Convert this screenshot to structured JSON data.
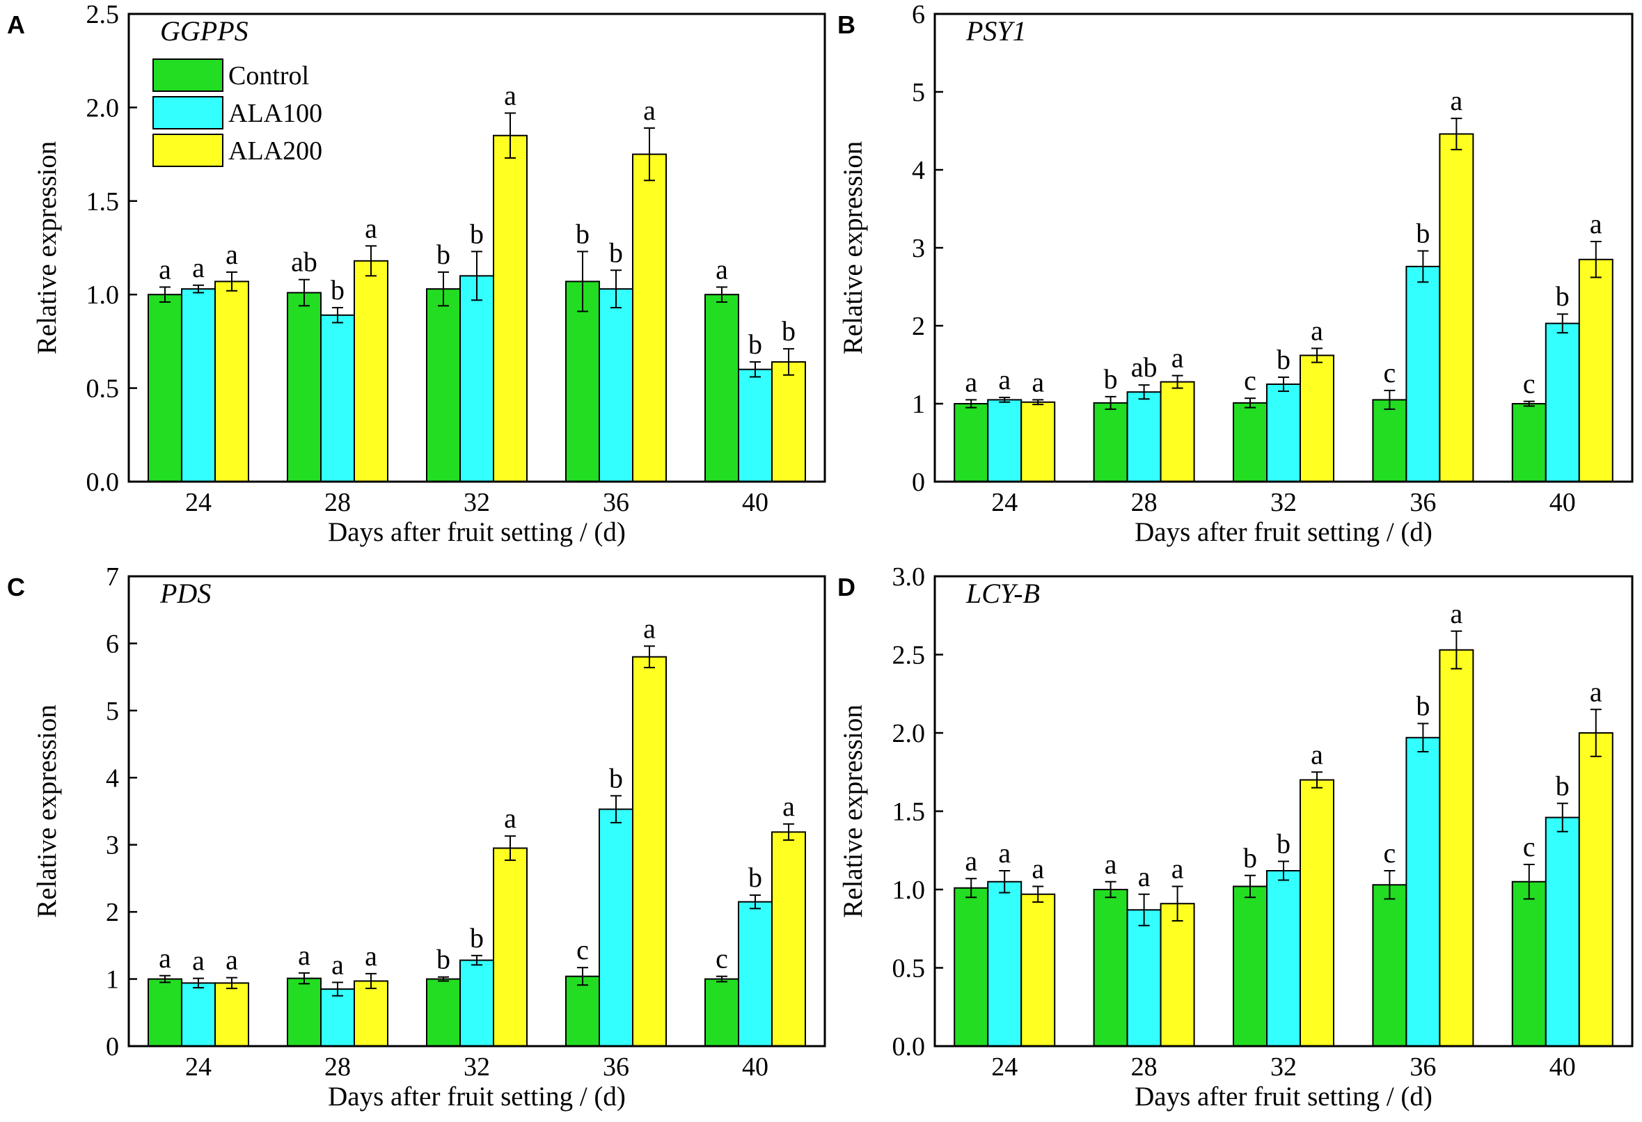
{
  "colors": {
    "control": "#22dd22",
    "ala100": "#33ffff",
    "ala200": "#ffff22",
    "frame": "#000000"
  },
  "legend": [
    "Control",
    "ALA100",
    "ALA200"
  ],
  "chart_data": [
    {
      "panel": "A",
      "type": "bar",
      "title": "GGPPS",
      "xlabel": "Days after fruit setting / (d)",
      "ylabel": "Relative expression",
      "categories": [
        "24",
        "28",
        "32",
        "36",
        "40"
      ],
      "ylim": [
        0,
        2.5
      ],
      "yticks": [
        "0.0",
        "0.5",
        "1.0",
        "1.5",
        "2.0",
        "2.5"
      ],
      "legend_shown": true,
      "series": [
        {
          "name": "Control",
          "values": [
            1.0,
            1.01,
            1.03,
            1.07,
            1.0
          ],
          "errors": [
            0.04,
            0.07,
            0.09,
            0.16,
            0.04
          ],
          "labels": [
            "a",
            "ab",
            "b",
            "b",
            "a"
          ]
        },
        {
          "name": "ALA100",
          "values": [
            1.03,
            0.89,
            1.1,
            1.03,
            0.6
          ],
          "errors": [
            0.02,
            0.04,
            0.13,
            0.1,
            0.04
          ],
          "labels": [
            "a",
            "b",
            "b",
            "b",
            "b"
          ]
        },
        {
          "name": "ALA200",
          "values": [
            1.07,
            1.18,
            1.85,
            1.75,
            0.64
          ],
          "errors": [
            0.05,
            0.08,
            0.12,
            0.14,
            0.07
          ],
          "labels": [
            "a",
            "a",
            "a",
            "a",
            "b"
          ]
        }
      ]
    },
    {
      "panel": "B",
      "type": "bar",
      "title": "PSY1",
      "xlabel": "Days after fruit setting / (d)",
      "ylabel": "Relative expression",
      "categories": [
        "24",
        "28",
        "32",
        "36",
        "40"
      ],
      "ylim": [
        0,
        6
      ],
      "yticks": [
        "0",
        "1",
        "2",
        "3",
        "4",
        "5",
        "6"
      ],
      "legend_shown": false,
      "series": [
        {
          "name": "Control",
          "values": [
            1.0,
            1.01,
            1.01,
            1.05,
            1.0
          ],
          "errors": [
            0.05,
            0.08,
            0.06,
            0.12,
            0.03
          ],
          "labels": [
            "a",
            "b",
            "c",
            "c",
            "c"
          ]
        },
        {
          "name": "ALA100",
          "values": [
            1.05,
            1.15,
            1.25,
            2.76,
            2.03
          ],
          "errors": [
            0.03,
            0.09,
            0.09,
            0.2,
            0.12
          ],
          "labels": [
            "a",
            "ab",
            "b",
            "b",
            "b"
          ]
        },
        {
          "name": "ALA200",
          "values": [
            1.02,
            1.28,
            1.62,
            4.46,
            2.85
          ],
          "errors": [
            0.03,
            0.08,
            0.09,
            0.2,
            0.23
          ],
          "labels": [
            "a",
            "a",
            "a",
            "a",
            "a"
          ]
        }
      ]
    },
    {
      "panel": "C",
      "type": "bar",
      "title": "PDS",
      "xlabel": "Days after fruit setting / (d)",
      "ylabel": "Relative expression",
      "categories": [
        "24",
        "28",
        "32",
        "36",
        "40"
      ],
      "ylim": [
        0,
        7
      ],
      "yticks": [
        "0",
        "1",
        "2",
        "3",
        "4",
        "5",
        "6",
        "7"
      ],
      "legend_shown": false,
      "series": [
        {
          "name": "Control",
          "values": [
            1.0,
            1.01,
            1.0,
            1.04,
            1.0
          ],
          "errors": [
            0.05,
            0.08,
            0.03,
            0.13,
            0.04
          ],
          "labels": [
            "a",
            "a",
            "b",
            "c",
            "c"
          ]
        },
        {
          "name": "ALA100",
          "values": [
            0.94,
            0.85,
            1.28,
            3.53,
            2.15
          ],
          "errors": [
            0.07,
            0.1,
            0.07,
            0.2,
            0.1
          ],
          "labels": [
            "a",
            "a",
            "b",
            "b",
            "b"
          ]
        },
        {
          "name": "ALA200",
          "values": [
            0.94,
            0.97,
            2.95,
            5.8,
            3.19
          ],
          "errors": [
            0.08,
            0.11,
            0.18,
            0.16,
            0.12
          ],
          "labels": [
            "a",
            "a",
            "a",
            "a",
            "a"
          ]
        }
      ]
    },
    {
      "panel": "D",
      "type": "bar",
      "title": "LCY-B",
      "xlabel": "Days after fruit setting / (d)",
      "ylabel": "Relative expression",
      "categories": [
        "24",
        "28",
        "32",
        "36",
        "40"
      ],
      "ylim": [
        0,
        3.0
      ],
      "yticks": [
        "0.0",
        "0.5",
        "1.0",
        "1.5",
        "2.0",
        "2.5",
        "3.0"
      ],
      "legend_shown": false,
      "series": [
        {
          "name": "Control",
          "values": [
            1.01,
            1.0,
            1.02,
            1.03,
            1.05
          ],
          "errors": [
            0.06,
            0.05,
            0.07,
            0.09,
            0.11
          ],
          "labels": [
            "a",
            "a",
            "b",
            "c",
            "c"
          ]
        },
        {
          "name": "ALA100",
          "values": [
            1.05,
            0.87,
            1.12,
            1.97,
            1.46
          ],
          "errors": [
            0.07,
            0.1,
            0.06,
            0.09,
            0.09
          ],
          "labels": [
            "a",
            "a",
            "b",
            "b",
            "b"
          ]
        },
        {
          "name": "ALA200",
          "values": [
            0.97,
            0.91,
            1.7,
            2.53,
            2.0
          ],
          "errors": [
            0.05,
            0.11,
            0.05,
            0.12,
            0.15
          ],
          "labels": [
            "a",
            "a",
            "a",
            "a",
            "a"
          ]
        }
      ]
    }
  ]
}
